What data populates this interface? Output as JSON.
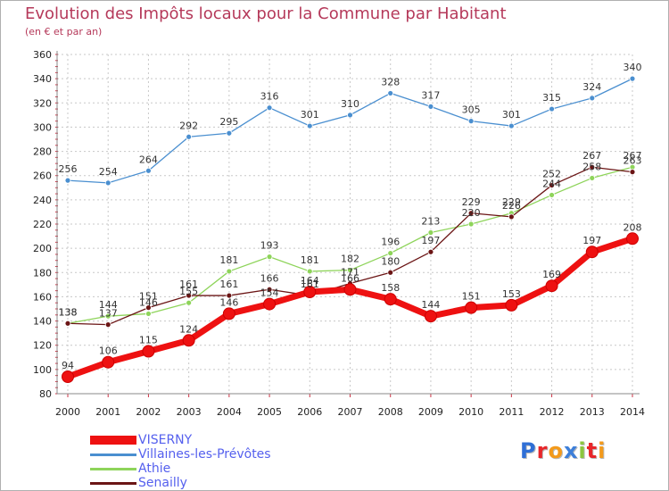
{
  "chart_data": {
    "type": "line",
    "title": "Evolution des Impôts locaux pour la Commune par Habitant",
    "subtitle": "(en € et par an)",
    "xlabel": "",
    "ylabel": "",
    "ylim": [
      80,
      360
    ],
    "yticks": [
      80,
      100,
      120,
      140,
      160,
      180,
      200,
      220,
      240,
      260,
      280,
      300,
      320,
      340,
      360
    ],
    "x": [
      "2000",
      "2001",
      "2002",
      "2003",
      "2004",
      "2005",
      "2006",
      "2007",
      "2008",
      "2009",
      "2010",
      "2011",
      "2012",
      "2013",
      "2014"
    ],
    "grid": true,
    "legend_position": "bottom-left",
    "series": [
      {
        "name": "VISERNY",
        "color": "#ee1111",
        "values": [
          94,
          106,
          115,
          124,
          146,
          154,
          164,
          166,
          158,
          144,
          151,
          153,
          169,
          197,
          208
        ]
      },
      {
        "name": "Villaines-les-Prévôtes",
        "color": "#4a8fd0",
        "values": [
          256,
          254,
          264,
          292,
          295,
          316,
          301,
          310,
          328,
          317,
          305,
          301,
          315,
          324,
          340
        ]
      },
      {
        "name": "Athie",
        "color": "#8ed45a",
        "values": [
          138,
          144,
          146,
          155,
          181,
          193,
          181,
          182,
          196,
          213,
          220,
          229,
          244,
          258,
          267
        ]
      },
      {
        "name": "Senailly",
        "color": "#6b1515",
        "values": [
          138,
          137,
          151,
          161,
          161,
          166,
          161,
          171,
          180,
          197,
          229,
          226,
          252,
          267,
          263
        ]
      }
    ]
  },
  "branding": {
    "logo": [
      "P",
      "r",
      "o",
      "x",
      "i",
      "t",
      "i"
    ],
    "logo_colors": [
      "#2f6fd6",
      "#e8262a",
      "#f39a1b",
      "#3d7fd9",
      "#8cc63f",
      "#e8262a",
      "#f39a1b"
    ]
  }
}
